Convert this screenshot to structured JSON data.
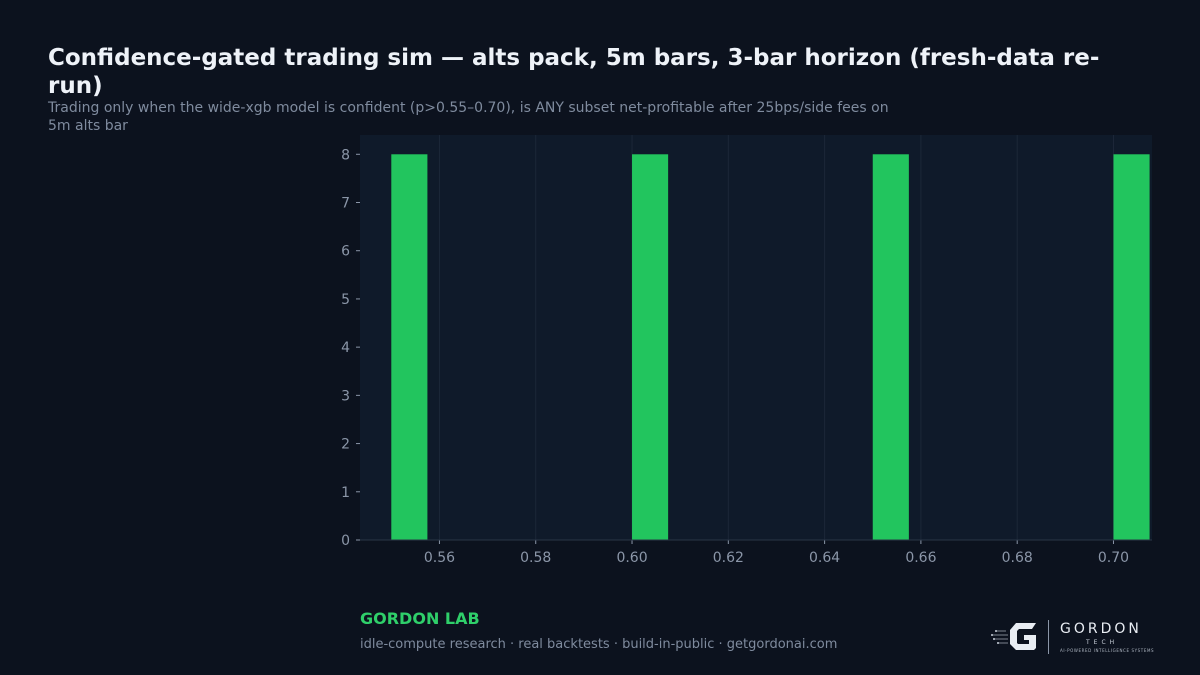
{
  "header": {
    "title": "Confidence-gated trading sim — alts pack, 5m bars, 3-bar horizon (fresh-data re-run)",
    "subtitle": "Trading only when the wide-xgb model is confident (p>0.55–0.70), is ANY subset net-profitable after 25bps/side fees on 5m alts bar"
  },
  "footer": {
    "brand": "GORDON LAB",
    "tagline": "idle-compute research · real backtests · build-in-public · getgordonai.com"
  },
  "logo": {
    "word": "GORDON",
    "sub": "TECH",
    "tag": "AI-POWERED INTELLIGENCE SYSTEMS"
  },
  "colors": {
    "background": "#0c121e",
    "plot_background": "#0f1a2a",
    "bar": "#22c55e",
    "brand": "#2fcf6a",
    "axis_text": "#8b96a8",
    "grid": "#1c2738"
  },
  "chart_data": {
    "type": "bar",
    "title": "",
    "xlabel": "",
    "ylabel": "",
    "x": [
      0.55,
      0.6,
      0.65,
      0.7
    ],
    "values": [
      8,
      8,
      8,
      8
    ],
    "bar_width": 0.0075,
    "xlim": [
      0.5435,
      0.708
    ],
    "ylim": [
      0,
      8.4
    ],
    "xticks": [
      0.56,
      0.58,
      0.6,
      0.62,
      0.64,
      0.66,
      0.68,
      0.7
    ],
    "xtick_labels": [
      "0.56",
      "0.58",
      "0.60",
      "0.62",
      "0.64",
      "0.66",
      "0.68",
      "0.70"
    ],
    "yticks": [
      0,
      1,
      2,
      3,
      4,
      5,
      6,
      7,
      8
    ],
    "ytick_labels": [
      "0",
      "1",
      "2",
      "3",
      "4",
      "5",
      "6",
      "7",
      "8"
    ],
    "grid": "vertical"
  }
}
